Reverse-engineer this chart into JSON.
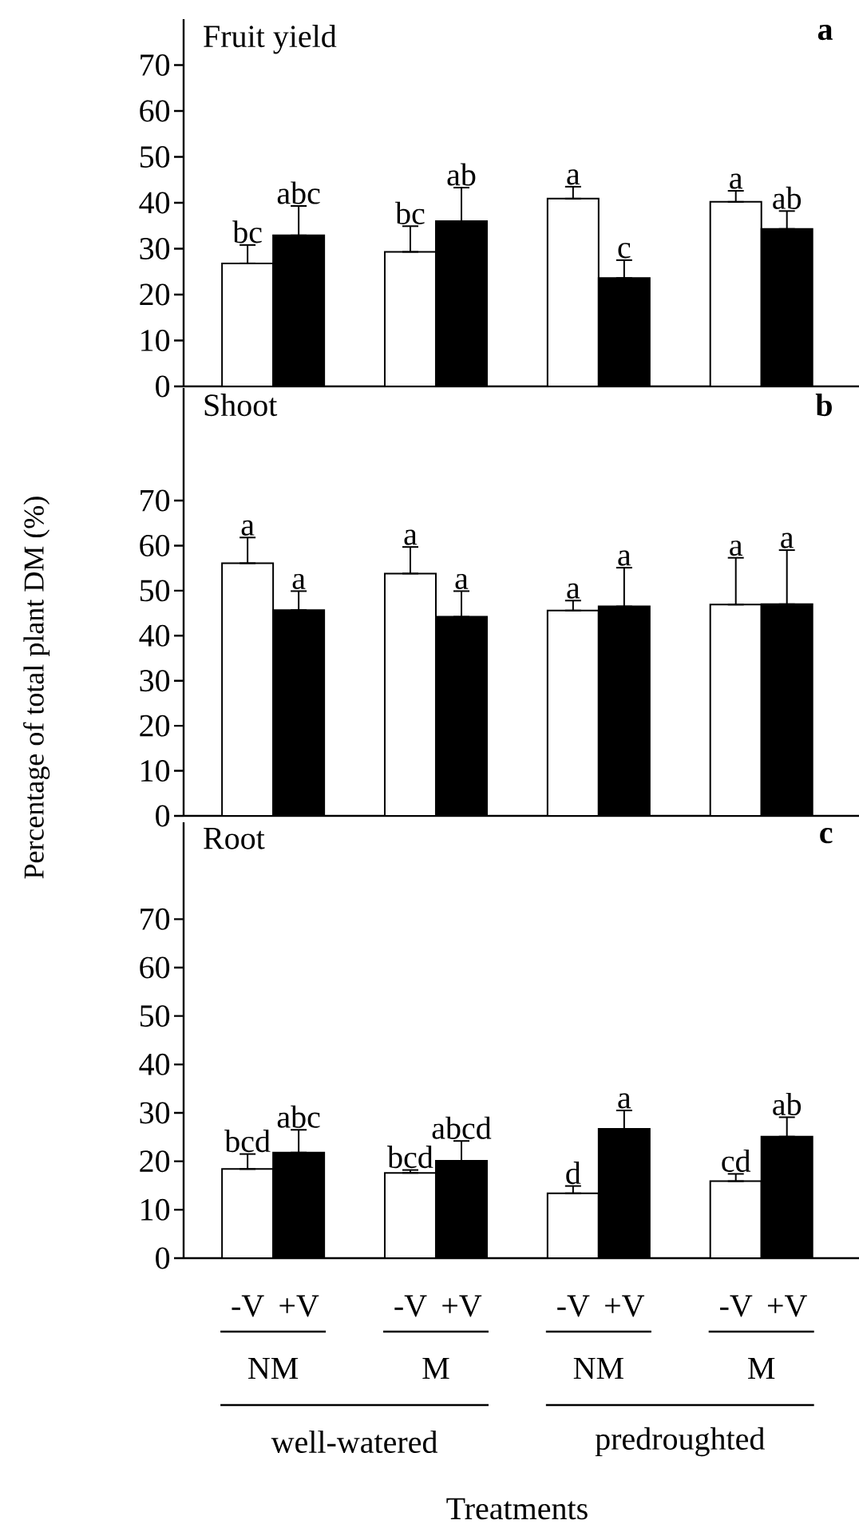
{
  "chart_data": [
    {
      "type": "bar",
      "title": "Fruit yield",
      "annotations": [
        "a"
      ],
      "categories": [
        null,
        null,
        null,
        null
      ],
      "tick_labels": "y",
      "ylim": [
        0,
        80
      ],
      "yticks": [
        0,
        10,
        20,
        30,
        40,
        50,
        60,
        70
      ],
      "series": [
        {
          "color": "#ffffff",
          "values": [
            26.8,
            29.3,
            40.9,
            40.2
          ],
          "errors": [
            [
              26.8,
              30.8
            ],
            [
              29.3,
              34.9
            ],
            [
              40.9,
              43.5
            ],
            [
              40.2,
              42.6
            ]
          ],
          "value_labels": [
            "bc",
            "bc",
            "a",
            "a"
          ]
        },
        {
          "color": "#000000",
          "values": [
            32.9,
            36.0,
            23.6,
            34.3
          ],
          "errors": [
            [
              32.9,
              39.3
            ],
            [
              36.0,
              43.3
            ],
            [
              23.6,
              27.5
            ],
            [
              34.3,
              38.2
            ]
          ],
          "value_labels": [
            "abc",
            "ab",
            "c",
            "ab"
          ]
        }
      ]
    },
    {
      "type": "bar",
      "title": "Shoot",
      "ylabel": "Percentage of total plant DM (%)",
      "annotations": [
        "b"
      ],
      "categories": [
        null,
        null,
        null,
        null
      ],
      "tick_labels": "y",
      "ylim": [
        0,
        95
      ],
      "yticks": [
        0,
        10,
        20,
        30,
        40,
        50,
        60,
        70
      ],
      "series": [
        {
          "color": "#ffffff",
          "values": [
            56.1,
            53.8,
            45.6,
            46.9
          ],
          "errors": [
            [
              56.1,
              61.8
            ],
            [
              53.8,
              59.7
            ],
            [
              45.6,
              47.8
            ],
            [
              46.9,
              57.3
            ]
          ],
          "value_labels": [
            "a",
            "a",
            "a",
            "a"
          ]
        },
        {
          "color": "#000000",
          "values": [
            45.7,
            44.2,
            46.5,
            47.0
          ],
          "errors": [
            [
              45.7,
              49.9
            ],
            [
              44.2,
              49.9
            ],
            [
              46.5,
              55.1
            ],
            [
              47.0,
              59.0
            ]
          ],
          "value_labels": [
            "a",
            "a",
            "a",
            "a"
          ]
        }
      ]
    },
    {
      "type": "bar",
      "title": "Root",
      "xlabel": "Treatments",
      "annotations": [
        "c",
        "well-watered",
        "predroughted"
      ],
      "categories": [
        "NM",
        "M",
        "NM",
        "M"
      ],
      "ylim": [
        0,
        90
      ],
      "yticks": [
        0,
        10,
        20,
        30,
        40,
        50,
        60,
        70
      ],
      "series": [
        {
          "name": "-V",
          "color": "#ffffff",
          "values": [
            18.4,
            17.6,
            13.4,
            15.9
          ],
          "errors": [
            [
              18.4,
              21.5
            ],
            [
              17.6,
              18.2
            ],
            [
              13.4,
              14.9
            ],
            [
              15.9,
              17.4
            ]
          ],
          "value_labels": [
            "bcd",
            "bcd",
            "d",
            "cd"
          ]
        },
        {
          "name": "+V",
          "color": "#000000",
          "values": [
            21.8,
            20.1,
            26.7,
            25.1
          ],
          "errors": [
            [
              21.8,
              26.5
            ],
            [
              20.1,
              24.2
            ],
            [
              26.7,
              30.5
            ],
            [
              25.1,
              29.1
            ]
          ],
          "value_labels": [
            "abc",
            "abcd",
            "a",
            "ab"
          ]
        }
      ]
    }
  ]
}
